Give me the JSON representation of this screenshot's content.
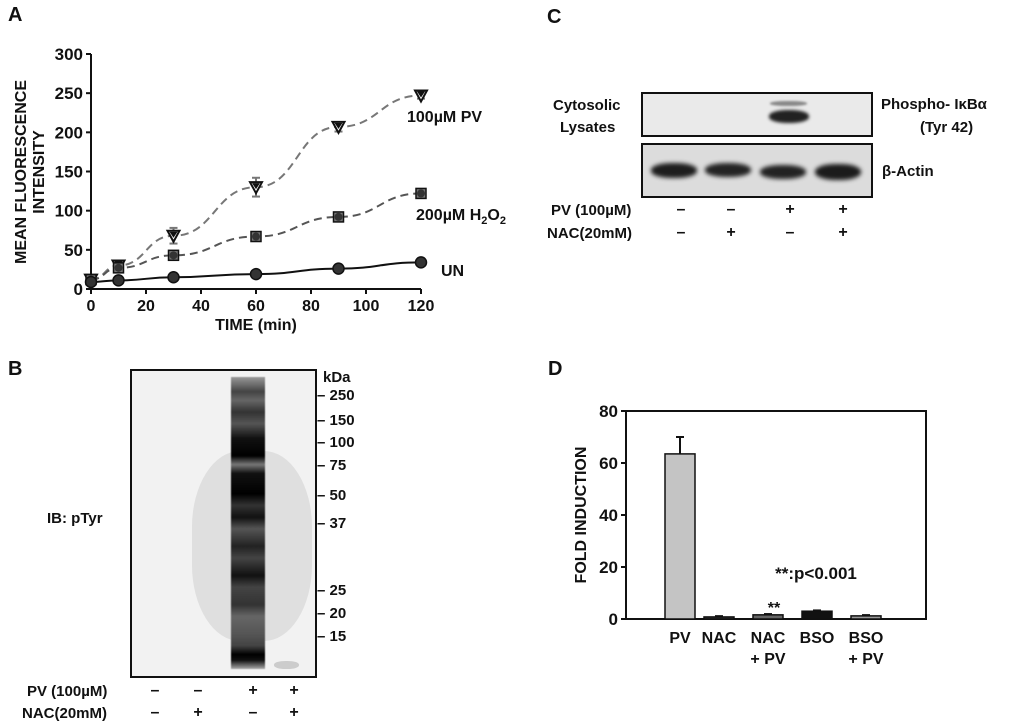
{
  "panels": {
    "A": {
      "letter": "A"
    },
    "B": {
      "letter": "B",
      "ib_label": "IB: pTyr",
      "kda_label": "kDa",
      "markers": [
        "250",
        "150",
        "100",
        "75",
        "50",
        "37",
        "25",
        "20",
        "15"
      ],
      "rows": [
        {
          "label": "PV (100µM)",
          "marks": [
            "–",
            "–",
            "+",
            "+"
          ]
        },
        {
          "label": "NAC(20mM)",
          "marks": [
            "–",
            "+",
            "–",
            "+"
          ]
        }
      ]
    },
    "C": {
      "letter": "C",
      "left_label_1": "Cytosolic",
      "left_label_2": "Lysates",
      "top_blot_label_1": "Phospho- IκBα",
      "top_blot_label_2": "(Tyr 42)",
      "bottom_blot_label": "β-Actin",
      "rows": [
        {
          "label": "PV (100µM)",
          "marks": [
            "–",
            "–",
            "+",
            "+"
          ]
        },
        {
          "label": "NAC(20mM)",
          "marks": [
            "–",
            "+",
            "–",
            "+"
          ]
        }
      ]
    },
    "D": {
      "letter": "D",
      "annotation": "**:p<0.001",
      "sig_marker": "**"
    }
  },
  "chart_data": [
    {
      "panel": "A",
      "type": "line",
      "title": "",
      "xlabel": "TIME (min)",
      "ylabel": "MEAN FLUORESCENCE INTENSITY",
      "ylabel_lines": [
        "MEAN FLUORESCENCE",
        "INTENSITY"
      ],
      "xlim": [
        0,
        120
      ],
      "ylim": [
        0,
        300
      ],
      "xticks": [
        0,
        20,
        40,
        60,
        80,
        100,
        120
      ],
      "yticks": [
        0,
        50,
        100,
        150,
        200,
        250,
        300
      ],
      "grid": false,
      "x": [
        0,
        10,
        30,
        60,
        90,
        120
      ],
      "series": [
        {
          "name": "100µM PV",
          "label_main": "100µM PV",
          "values": [
            12,
            30,
            68,
            130,
            207,
            247
          ],
          "errors": [
            3,
            6,
            10,
            12,
            6,
            4
          ],
          "marker": "triangle-down",
          "line": "dashed",
          "color": "#777777"
        },
        {
          "name": "200µM H2O2",
          "label_main": "200µM H",
          "label_sub1": "2",
          "label_mid": "O",
          "label_sub2": "2",
          "values": [
            12,
            27,
            43,
            67,
            92,
            122
          ],
          "errors": [
            2,
            3,
            3,
            3,
            3,
            5
          ],
          "marker": "circle-square",
          "line": "dashed",
          "color": "#555555"
        },
        {
          "name": "UN",
          "label_main": "UN",
          "values": [
            9,
            11,
            15,
            19,
            26,
            34
          ],
          "errors": [
            1,
            1,
            1,
            1,
            2,
            2
          ],
          "marker": "circle",
          "line": "solid",
          "color": "#111111"
        }
      ]
    },
    {
      "panel": "D",
      "type": "bar",
      "title": "",
      "xlabel": "",
      "ylabel": "FOLD INDUCTION",
      "ylim": [
        0,
        80
      ],
      "yticks": [
        0,
        20,
        40,
        60,
        80
      ],
      "grid": false,
      "categories": [
        "PV",
        "NAC",
        "NAC + PV",
        "BSO",
        "BSO + PV"
      ],
      "category_lines": [
        [
          "PV"
        ],
        [
          "NAC"
        ],
        [
          "NAC",
          "+ PV"
        ],
        [
          "BSO"
        ],
        [
          "BSO",
          "+ PV"
        ]
      ],
      "values": [
        63.5,
        0.8,
        1.6,
        3.0,
        1.2
      ],
      "errors": [
        6.5,
        0.3,
        0.3,
        0.3,
        0.3
      ],
      "bar_colors": [
        "#c4c4c4",
        "#333333",
        "#666666",
        "#111111",
        "#999999"
      ],
      "annotations": [
        {
          "text": "**:p<0.001"
        },
        {
          "text": "**",
          "category": "NAC + PV"
        }
      ]
    }
  ]
}
